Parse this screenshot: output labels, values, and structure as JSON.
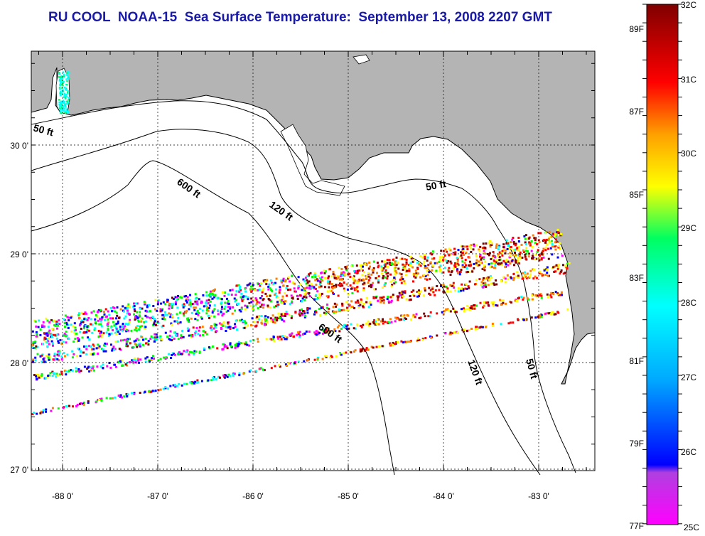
{
  "title": "RU COOL  NOAA-15  Sea Surface Temperature:  September 13, 2008 2207 GMT",
  "map": {
    "lon_ticks": [
      "-88 0'",
      "-87 0'",
      "-86 0'",
      "-85 0'",
      "-84 0'",
      "-83 0'"
    ],
    "lat_ticks": [
      "30 0'",
      "29 0'",
      "28 0'",
      "27 0'"
    ],
    "contour_labels": [
      "50 ft",
      "600 ft",
      "120 ft",
      "50 ft",
      "600 ft",
      "120 ft",
      "50 ft"
    ],
    "land_color": "#b4b4b4",
    "water_color": "#ffffff"
  },
  "colorbar": {
    "celsius_labels": [
      "32C",
      "31C",
      "30C",
      "29C",
      "28C",
      "27C",
      "26C",
      "25C"
    ],
    "fahrenheit_labels": [
      "89F",
      "87F",
      "85F",
      "83F",
      "81F",
      "79F",
      "77F"
    ],
    "colors": [
      "#ff00ff",
      "#0000ff",
      "#00ffff",
      "#00ff00",
      "#ffff00",
      "#ff8000",
      "#ff0000",
      "#800000"
    ]
  }
}
